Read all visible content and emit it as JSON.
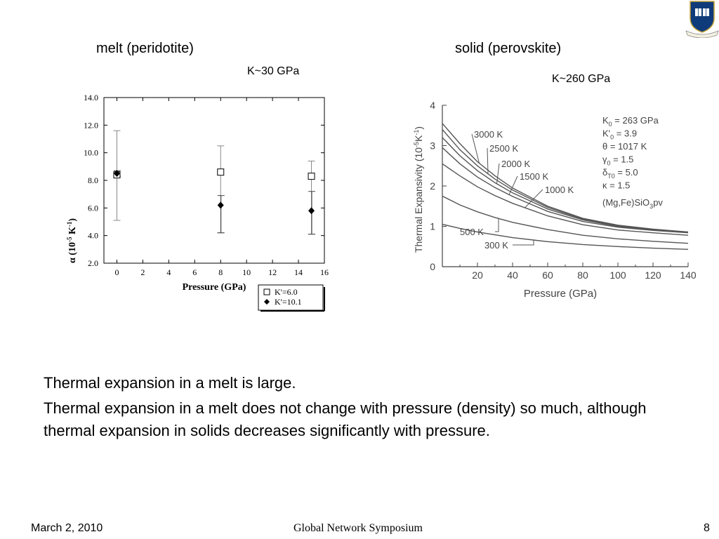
{
  "headers": {
    "left": "melt (peridotite)",
    "right": "solid (perovskite)",
    "left_k": "K~30 GPa",
    "right_k": "K~260 GPa"
  },
  "bullets": [
    "Thermal expansion in a melt is large.",
    "Thermal expansion in a melt does not change with pressure (density) so much, although thermal expansion in solids decreases significantly with pressure."
  ],
  "footer": {
    "date": "March 2, 2010",
    "title": "Global Network Symposium",
    "page": "8"
  },
  "chart_data": [
    {
      "type": "scatter",
      "ylabel_main": "α (10",
      "ylabel_exp": "-5",
      "ylabel_unit": " K",
      "ylabel_exp2": "-1",
      "ylabel_close": ")",
      "xlabel": "Pressure (GPa)",
      "xlim": [
        -1,
        16
      ],
      "ylim": [
        2,
        14
      ],
      "xticks": [
        0,
        2,
        4,
        6,
        8,
        10,
        12,
        14,
        16
      ],
      "yticks": [
        2.0,
        4.0,
        6.0,
        8.0,
        10.0,
        12.0,
        14.0
      ],
      "legend_position": "bottom-right",
      "series": [
        {
          "name": "K'=6.0",
          "marker": "open-square",
          "points": [
            {
              "x": 0,
              "y": 8.4,
              "err_low": 5.1,
              "err_high": 11.6
            },
            {
              "x": 8,
              "y": 8.6,
              "err_low": 4.2,
              "err_high": 10.5
            },
            {
              "x": 15,
              "y": 8.3,
              "err_low": 4.1,
              "err_high": 9.4
            }
          ]
        },
        {
          "name": "K'=10.1",
          "marker": "filled-diamond",
          "points": [
            {
              "x": 0,
              "y": 8.5,
              "err_low": 8.3,
              "err_high": 8.7
            },
            {
              "x": 8,
              "y": 6.2,
              "err_low": 4.2,
              "err_high": 6.9
            },
            {
              "x": 15,
              "y": 5.8,
              "err_low": 4.1,
              "err_high": 7.2
            }
          ]
        }
      ]
    },
    {
      "type": "line",
      "ylabel": "Thermal Expansivity (10",
      "ylabel_exp": "-5",
      "ylabel_unit": "K",
      "ylabel_exp2": "-1",
      "ylabel_close": ")",
      "xlabel": "Pressure (GPa)",
      "xlim": [
        0,
        140
      ],
      "ylim": [
        0,
        4
      ],
      "xticks": [
        20,
        40,
        60,
        80,
        100,
        120,
        140
      ],
      "yticks": [
        0,
        1,
        2,
        3,
        4
      ],
      "params": [
        {
          "key": "K",
          "sub": "0",
          "val": " = 263 GPa"
        },
        {
          "key": "K'",
          "sub": "0",
          "val": " = 3.9"
        },
        {
          "key": "θ",
          "sub": "",
          "val": " = 1017 K"
        },
        {
          "key": "γ",
          "sub": "0",
          "val": " = 1.5"
        },
        {
          "key": "δ",
          "sub": "T0",
          "val": " = 5.0"
        },
        {
          "key": "κ",
          "sub": "",
          "val": " = 1.5"
        }
      ],
      "composition": "(Mg,Fe)SiO",
      "composition_sub": "3",
      "composition_end": "pv",
      "series": [
        {
          "name": "3000 K",
          "x": [
            0,
            10,
            20,
            30,
            40,
            60,
            80,
            100,
            120,
            140
          ],
          "y": [
            3.55,
            3.05,
            2.6,
            2.25,
            1.95,
            1.5,
            1.2,
            1.03,
            0.93,
            0.86
          ]
        },
        {
          "name": "2500 K",
          "x": [
            0,
            10,
            20,
            30,
            40,
            60,
            80,
            100,
            120,
            140
          ],
          "y": [
            3.4,
            2.9,
            2.5,
            2.17,
            1.9,
            1.47,
            1.18,
            1.02,
            0.92,
            0.86
          ]
        },
        {
          "name": "2000 K",
          "x": [
            0,
            10,
            20,
            30,
            40,
            60,
            80,
            100,
            120,
            140
          ],
          "y": [
            3.2,
            2.75,
            2.38,
            2.08,
            1.83,
            1.43,
            1.16,
            1.0,
            0.91,
            0.85
          ]
        },
        {
          "name": "1500 K",
          "x": [
            0,
            10,
            20,
            30,
            40,
            60,
            80,
            100,
            120,
            140
          ],
          "y": [
            2.95,
            2.55,
            2.22,
            1.96,
            1.74,
            1.37,
            1.12,
            0.98,
            0.9,
            0.84
          ]
        },
        {
          "name": "1000 K",
          "x": [
            0,
            10,
            20,
            30,
            40,
            60,
            80,
            100,
            120,
            140
          ],
          "y": [
            2.55,
            2.25,
            1.98,
            1.76,
            1.57,
            1.26,
            1.04,
            0.91,
            0.84,
            0.78
          ]
        },
        {
          "name": "500 K",
          "x": [
            0,
            10,
            20,
            30,
            40,
            60,
            80,
            100,
            120,
            140
          ],
          "y": [
            1.75,
            1.53,
            1.36,
            1.22,
            1.1,
            0.92,
            0.78,
            0.69,
            0.63,
            0.58
          ]
        },
        {
          "name": "300 K",
          "x": [
            0,
            10,
            20,
            30,
            40,
            60,
            80,
            100,
            120,
            140
          ],
          "y": [
            1.05,
            0.95,
            0.86,
            0.79,
            0.72,
            0.62,
            0.55,
            0.5,
            0.46,
            0.43
          ]
        }
      ]
    }
  ]
}
